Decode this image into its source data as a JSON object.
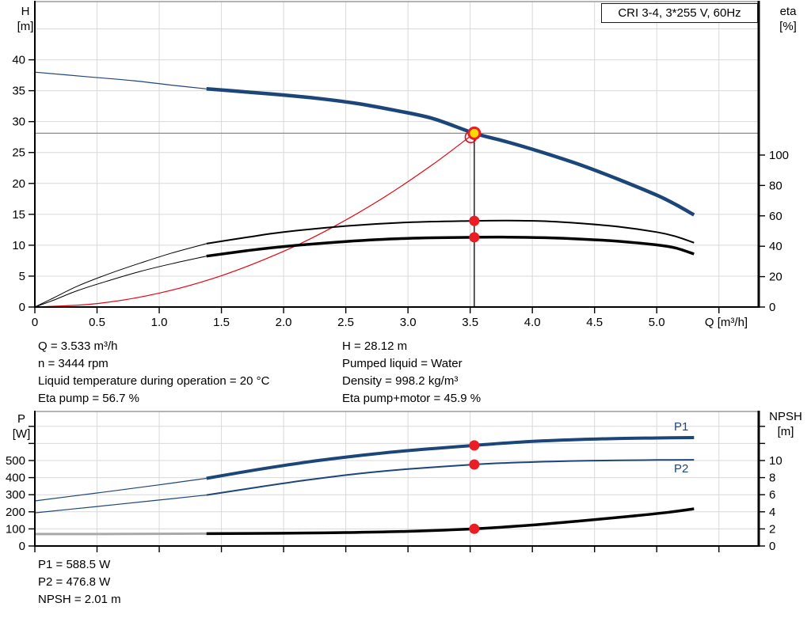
{
  "title": "CRI 3-4, 3*255 V, 60Hz",
  "colors": {
    "blue": "#1c4679",
    "red": "#e30613",
    "dot_red": "#ec1c24",
    "yellow": "#ffd900",
    "black": "#000000",
    "gray_ref": "#8c8c8c",
    "gray_ext": "#a9a9a9",
    "grid": "#d9d9d9",
    "frame": "#9b9b9b",
    "label_blue": "#1c4679"
  },
  "curve_labels": {
    "p1": "P1",
    "p2": "P2"
  },
  "operating_info": {
    "left": [
      "Q = 3.533 m³/h",
      "n = 3444 rpm",
      "Liquid temperature during operation = 20 °C",
      "Eta pump = 56.7 %"
    ],
    "right": [
      "H = 28.12 m",
      "Pumped liquid = Water",
      "Density = 998.2 kg/m³",
      "Eta pump+motor = 45.9 %"
    ]
  },
  "result_info": [
    "P1 = 588.5 W",
    "P2 = 476.8 W",
    "NPSH = 2.01 m"
  ],
  "chart_data": [
    {
      "type": "line",
      "title": "CRI 3-4, 3*255 V, 60Hz",
      "xlabel": "Q [m³/h]",
      "ylabel_left": "H [m]",
      "ylabel_left_lines": [
        "H",
        "[m]"
      ],
      "ylabel_right": "eta [%]",
      "ylabel_right_lines": [
        "eta",
        "[%]"
      ],
      "xlim": [
        0,
        5.82
      ],
      "ylim_left": [
        0,
        49.42
      ],
      "ylim_right": [
        0,
        201.0
      ],
      "x_ticks": [
        0,
        0.5,
        1.0,
        1.5,
        2.0,
        2.5,
        3.0,
        3.5,
        4.0,
        4.5,
        5.0,
        5.5
      ],
      "x_tick_labels": [
        "0",
        "0.5",
        "1.0",
        "1.5",
        "2.0",
        "2.5",
        "3.0",
        "3.5",
        "4.0",
        "4.5",
        "5.0",
        ""
      ],
      "x_grid": [
        0.5,
        1.0,
        1.5,
        2.0,
        2.5,
        3.0,
        3.5,
        4.0,
        4.5,
        5.0,
        5.5
      ],
      "left_ticks": [
        0,
        5,
        10,
        15,
        20,
        25,
        30,
        35,
        40
      ],
      "left_tick_labels": [
        "0",
        "5",
        "10",
        "15",
        "20",
        "25",
        "30",
        "35",
        "40"
      ],
      "y_grid": [
        5,
        10,
        15,
        20,
        25,
        30,
        35,
        40,
        45
      ],
      "right_ticks": [
        0,
        20,
        40,
        60,
        80,
        100
      ],
      "right_tick_labels": [
        "0",
        "20",
        "40",
        "60",
        "80",
        "100"
      ],
      "duty_point": {
        "q": 3.533,
        "h": 28.12,
        "eta_pump": 56.7,
        "eta_pump_motor": 45.9
      },
      "reference": {
        "h": 28.12,
        "v_q": 3.533,
        "v_from_h": 28.12
      },
      "series": [
        {
          "name": "pump-curve-extension",
          "axis": "left",
          "color": "blue",
          "width": 1.2,
          "points": [
            [
              0,
              38.0
            ],
            [
              0.4,
              37.3
            ],
            [
              0.8,
              36.6
            ],
            [
              1.1,
              35.9
            ],
            [
              1.38,
              35.3
            ]
          ]
        },
        {
          "name": "system-curve",
          "axis": "left",
          "color": "red",
          "width": 1.2,
          "points": [
            [
              0,
              0
            ],
            [
              0.5,
              0.56
            ],
            [
              1.0,
              2.25
            ],
            [
              1.5,
              5.07
            ],
            [
              2.0,
              9.01
            ],
            [
              2.4,
              12.97
            ],
            [
              2.8,
              17.66
            ],
            [
              3.2,
              23.07
            ],
            [
              3.533,
              28.12
            ]
          ]
        },
        {
          "name": "eta-pump-extension",
          "axis": "right",
          "color": "black",
          "width": 1,
          "points": [
            [
              0,
              0
            ],
            [
              0.15,
              6
            ],
            [
              0.35,
              14
            ],
            [
              0.6,
              22
            ],
            [
              0.85,
              29
            ],
            [
              1.1,
              35.5
            ],
            [
              1.38,
              41.7
            ]
          ]
        },
        {
          "name": "eta-pump-motor-extension",
          "axis": "right",
          "color": "black",
          "width": 1,
          "points": [
            [
              0,
              0
            ],
            [
              0.15,
              4.5
            ],
            [
              0.35,
              11
            ],
            [
              0.6,
              17.5
            ],
            [
              0.85,
              23.5
            ],
            [
              1.1,
              28.5
            ],
            [
              1.38,
              33.5
            ]
          ]
        },
        {
          "name": "eta-pump-curve",
          "axis": "right",
          "color": "black",
          "width": 2,
          "points": [
            [
              1.38,
              41.7
            ],
            [
              1.7,
              45.8
            ],
            [
              2.0,
              49.3
            ],
            [
              2.5,
              53.3
            ],
            [
              3.0,
              55.7
            ],
            [
              3.533,
              56.7
            ],
            [
              3.8,
              56.9
            ],
            [
              4.1,
              56.5
            ],
            [
              4.4,
              55.0
            ],
            [
              4.7,
              52.8
            ],
            [
              5.0,
              49.3
            ],
            [
              5.15,
              46.5
            ],
            [
              5.3,
              42.3
            ]
          ]
        },
        {
          "name": "eta-pump-motor-curve",
          "axis": "right",
          "color": "black",
          "width": 3.5,
          "points": [
            [
              1.38,
              33.5
            ],
            [
              1.7,
              37.0
            ],
            [
              2.0,
              39.8
            ],
            [
              2.5,
              43.1
            ],
            [
              3.0,
              45.2
            ],
            [
              3.533,
              45.9
            ],
            [
              3.8,
              46.0
            ],
            [
              4.1,
              45.6
            ],
            [
              4.4,
              44.7
            ],
            [
              4.7,
              43.2
            ],
            [
              5.0,
              40.9
            ],
            [
              5.15,
              38.9
            ],
            [
              5.3,
              34.9
            ]
          ]
        },
        {
          "name": "pump-curve",
          "axis": "left",
          "color": "blue",
          "width": 4.5,
          "points": [
            [
              1.38,
              35.3
            ],
            [
              1.7,
              34.8
            ],
            [
              2.0,
              34.3
            ],
            [
              2.3,
              33.7
            ],
            [
              2.6,
              32.9
            ],
            [
              2.9,
              31.8
            ],
            [
              3.2,
              30.5
            ],
            [
              3.533,
              28.12
            ],
            [
              3.8,
              26.7
            ],
            [
              4.1,
              24.9
            ],
            [
              4.4,
              22.9
            ],
            [
              4.7,
              20.6
            ],
            [
              5.0,
              18.1
            ],
            [
              5.15,
              16.6
            ],
            [
              5.3,
              14.9
            ]
          ]
        }
      ],
      "markers": [
        {
          "name": "system-curve-duty-ring",
          "style": "ring",
          "axis": "left",
          "q": 3.505,
          "v": 27.5,
          "r": 7
        },
        {
          "name": "duty-point-marker",
          "style": "duty",
          "axis": "left",
          "q": 3.533,
          "v": 28.12,
          "r": 7
        },
        {
          "name": "eta-pump-duty-dot",
          "style": "dot",
          "axis": "right",
          "q": 3.533,
          "v": 56.7,
          "r": 6.5
        },
        {
          "name": "eta-pump-motor-duty-dot",
          "style": "dot",
          "axis": "right",
          "q": 3.533,
          "v": 45.9,
          "r": 6.5
        }
      ]
    },
    {
      "type": "line",
      "xlabel": "",
      "ylabel_left": "P [W]",
      "ylabel_left_lines": [
        "P",
        "[W]"
      ],
      "ylabel_right": "NPSH [m]",
      "ylabel_right_lines": [
        "NPSH",
        "[m]"
      ],
      "xlim": [
        0,
        5.82
      ],
      "ylim_left": [
        0,
        787
      ],
      "ylim_right": [
        0,
        15.74
      ],
      "x_ticks": [
        0,
        0.5,
        1.0,
        1.5,
        2.0,
        2.5,
        3.0,
        3.5,
        4.0,
        4.5,
        5.0,
        5.5
      ],
      "x_tick_labels": [
        "",
        "",
        "",
        "",
        "",
        "",
        "",
        "",
        "",
        "",
        "",
        ""
      ],
      "x_grid": [
        0.5,
        1.0,
        1.5,
        2.0,
        2.5,
        3.0,
        3.5,
        4.0,
        4.5,
        5.0,
        5.5
      ],
      "left_ticks": [
        0,
        100,
        200,
        300,
        400,
        500,
        600,
        700
      ],
      "left_tick_labels": [
        "0",
        "100",
        "200",
        "300",
        "400",
        "500",
        "",
        ""
      ],
      "y_grid": [
        100,
        200,
        300,
        400,
        500,
        600,
        700
      ],
      "right_ticks": [
        0,
        2,
        4,
        6,
        8,
        10,
        12,
        14
      ],
      "right_tick_labels": [
        "0",
        "2",
        "4",
        "6",
        "8",
        "10",
        "",
        ""
      ],
      "duty_point": {
        "q": 3.533,
        "p1_w": 588.5,
        "p2_w": 476.8,
        "npsh_m": 2.01
      },
      "series": [
        {
          "name": "p1-curve-extension",
          "axis": "left",
          "color": "blue",
          "width": 1.2,
          "points": [
            [
              0,
              264
            ],
            [
              0.5,
              310
            ],
            [
              1.0,
              358
            ],
            [
              1.38,
              396
            ]
          ]
        },
        {
          "name": "p2-curve-extension",
          "axis": "left",
          "color": "blue",
          "width": 1.2,
          "points": [
            [
              0,
              194
            ],
            [
              0.5,
              231
            ],
            [
              1.0,
              269
            ],
            [
              1.38,
              298
            ]
          ]
        },
        {
          "name": "npsh-curve-extension",
          "axis": "right",
          "color": "gray_ext",
          "width": 3,
          "points": [
            [
              0,
              1.4
            ],
            [
              0.7,
              1.41
            ],
            [
              1.38,
              1.44
            ]
          ]
        },
        {
          "name": "p2-curve",
          "axis": "left",
          "color": "blue",
          "width": 2,
          "points": [
            [
              1.38,
              298
            ],
            [
              1.8,
              345
            ],
            [
              2.2,
              387
            ],
            [
              2.6,
              423
            ],
            [
              3.0,
              450
            ],
            [
              3.533,
              476.8
            ],
            [
              3.9,
              489
            ],
            [
              4.3,
              497
            ],
            [
              4.7,
              501
            ],
            [
              5.0,
              503
            ],
            [
              5.3,
              504
            ]
          ]
        },
        {
          "name": "p1-curve",
          "axis": "left",
          "color": "blue",
          "width": 4,
          "points": [
            [
              1.38,
              396
            ],
            [
              1.8,
              448
            ],
            [
              2.2,
              492
            ],
            [
              2.6,
              528
            ],
            [
              3.0,
              558
            ],
            [
              3.533,
              588.5
            ],
            [
              3.9,
              608
            ],
            [
              4.3,
              621
            ],
            [
              4.7,
              629
            ],
            [
              5.0,
              632
            ],
            [
              5.3,
              634
            ]
          ]
        },
        {
          "name": "npsh-curve",
          "axis": "right",
          "color": "black",
          "width": 3.5,
          "points": [
            [
              1.38,
              1.44
            ],
            [
              2.0,
              1.49
            ],
            [
              2.5,
              1.57
            ],
            [
              3.0,
              1.71
            ],
            [
              3.533,
              2.01
            ],
            [
              4.0,
              2.45
            ],
            [
              4.4,
              2.95
            ],
            [
              4.8,
              3.5
            ],
            [
              5.1,
              3.95
            ],
            [
              5.3,
              4.35
            ]
          ]
        }
      ],
      "markers": [
        {
          "name": "p1-duty-dot",
          "style": "dot",
          "axis": "left",
          "q": 3.533,
          "v": 588.5,
          "r": 6.5
        },
        {
          "name": "p2-duty-dot",
          "style": "dot",
          "axis": "left",
          "q": 3.533,
          "v": 476.8,
          "r": 6.5
        },
        {
          "name": "npsh-duty-dot",
          "style": "dot",
          "axis": "right",
          "q": 3.533,
          "v": 2.01,
          "r": 6.5
        }
      ]
    }
  ]
}
